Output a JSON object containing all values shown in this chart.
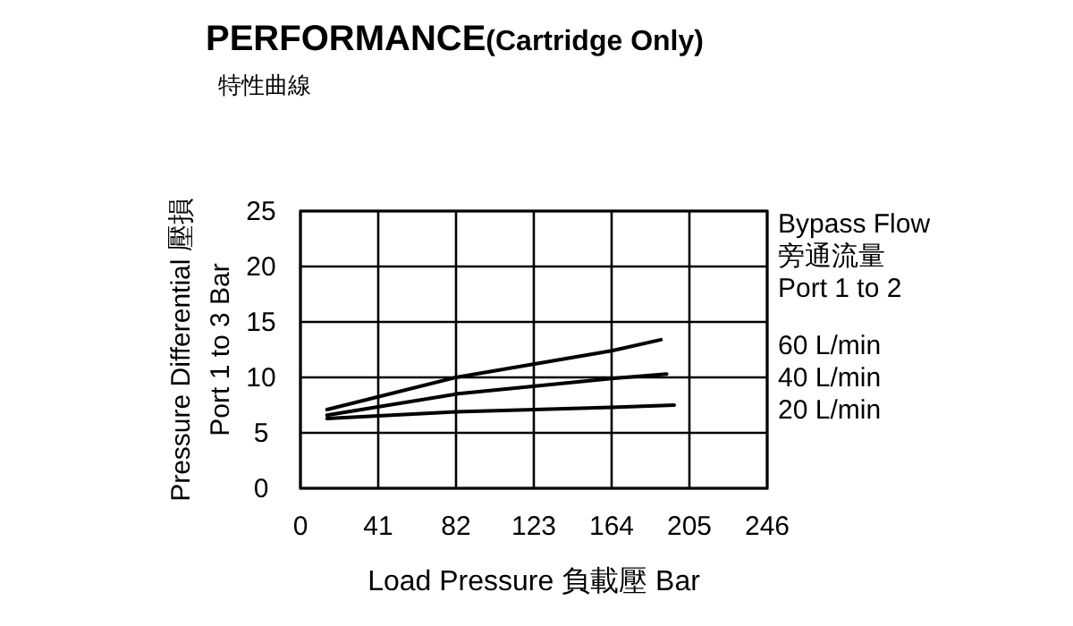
{
  "chart_data": {
    "type": "line",
    "title": "PERFORMANCE(Cartridge Only)",
    "subtitle": "特性曲線",
    "xlabel": "Load Pressure 負載壓 Bar",
    "ylabel": "Pressure Differential 壓損\nPort 1 to 3  Bar",
    "legend_title": "Bypass Flow\n旁通流量\nPort 1 to 2",
    "series": [
      {
        "name": "60 L/min",
        "color": "#000000",
        "x": [
          14,
          82,
          164,
          190
        ],
        "values": [
          7.1,
          10.0,
          12.4,
          13.4
        ]
      },
      {
        "name": "40 L/min",
        "color": "#000000",
        "x": [
          14,
          82,
          164,
          193
        ],
        "values": [
          6.6,
          8.5,
          9.9,
          10.3
        ]
      },
      {
        "name": "20 L/min",
        "color": "#000000",
        "x": [
          14,
          82,
          164,
          197
        ],
        "values": [
          6.3,
          6.9,
          7.3,
          7.5
        ]
      }
    ],
    "xlim": [
      0,
      246
    ],
    "ylim": [
      0,
      25
    ],
    "xticks": [
      0,
      41,
      82,
      123,
      164,
      205,
      246
    ],
    "yticks": [
      0,
      5,
      10,
      15,
      20,
      25
    ],
    "grid": true,
    "legend": "right"
  }
}
